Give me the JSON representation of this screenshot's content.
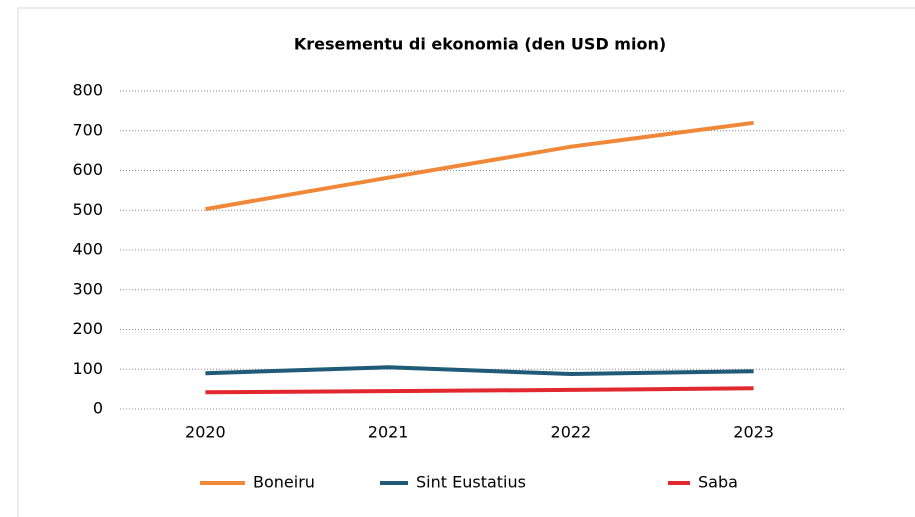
{
  "chart_data": {
    "type": "line",
    "title": "Kresementu di ekonomia (den USD mion)",
    "categories": [
      "2020",
      "2021",
      "2022",
      "2023"
    ],
    "series": [
      {
        "name": "Boneiru",
        "color": "#f0883a",
        "values": [
          503,
          582,
          660,
          720
        ]
      },
      {
        "name": "Sint Eustatius",
        "color": "#1f5a78",
        "values": [
          90,
          105,
          88,
          95
        ]
      },
      {
        "name": "Saba",
        "color": "#e0282e",
        "values": [
          42,
          45,
          48,
          52
        ]
      }
    ],
    "ylim": [
      0,
      800
    ],
    "yticks": [
      0,
      100,
      200,
      300,
      400,
      500,
      600,
      700,
      800
    ],
    "grid": true,
    "legend": "bottom"
  }
}
